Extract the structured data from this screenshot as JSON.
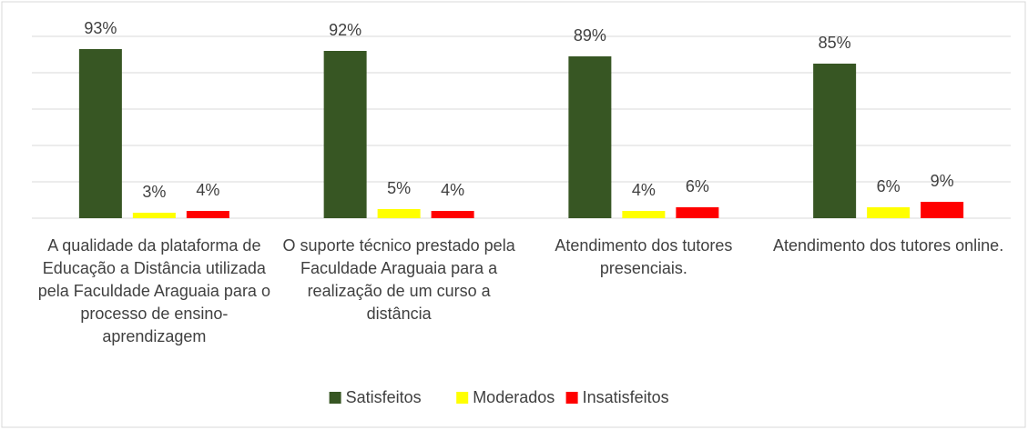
{
  "chart_data": {
    "type": "bar",
    "categories": [
      "A qualidade da plataforma de Educação a Distância utilizada pela Faculdade Araguaia para o processo de ensino-aprendizagem",
      "O suporte técnico prestado pela Faculdade Araguaia para a realização de um curso a distância",
      "Atendimento dos tutores presenciais.",
      "Atendimento dos tutores online."
    ],
    "series": [
      {
        "name": "Satisfeitos",
        "color": "#375623",
        "values": [
          93,
          92,
          89,
          85
        ],
        "value_labels": [
          "93%",
          "92%",
          "89%",
          "85%"
        ]
      },
      {
        "name": "Moderados",
        "color": "#ffff00",
        "values": [
          3,
          5,
          4,
          6
        ],
        "value_labels": [
          "3%",
          "5%",
          "4%",
          "6%"
        ]
      },
      {
        "name": "Insatisfeitos",
        "color": "#ff0000",
        "values": [
          4,
          4,
          6,
          9
        ],
        "value_labels": [
          "4%",
          "4%",
          "6%",
          "9%"
        ]
      }
    ],
    "ylim": [
      0,
      100
    ],
    "yticks": [
      0,
      20,
      40,
      60,
      80,
      100
    ],
    "grid": true,
    "legend": "bottom"
  }
}
